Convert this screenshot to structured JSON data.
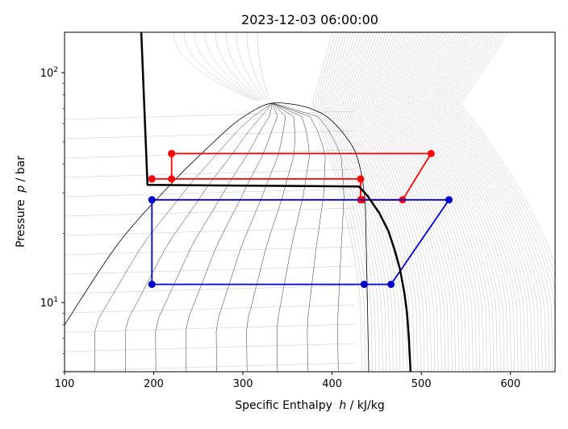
{
  "chart_data": {
    "type": "line",
    "title": "2023-12-03 06:00:00",
    "xlabel": "Specific Enthalpy",
    "xlabel_symbol": "h",
    "xlabel_unit": " / kJ/kg",
    "ylabel": "Pressure",
    "ylabel_symbol": "p",
    "ylabel_unit": " / bar",
    "xlim": [
      100,
      650
    ],
    "ylim": [
      5,
      150
    ],
    "yscale": "log",
    "xticks": [
      100,
      200,
      300,
      400,
      500,
      600
    ],
    "yticks": [
      {
        "value": 10,
        "label": "10",
        "sup": "1"
      },
      {
        "value": 100,
        "label": "10",
        "sup": "2"
      }
    ],
    "grid": false,
    "legend": "none",
    "series": [
      {
        "color": "#ff0000",
        "marker": "circle",
        "x": [
          220,
          511,
          479,
          434,
          432,
          432,
          198,
          198,
          220,
          220
        ],
        "y": [
          44.5,
          44.5,
          28,
          28,
          28,
          34.5,
          34.5,
          34.5,
          34.5,
          44.5
        ]
      },
      {
        "color": "#0000cc",
        "marker": "circle",
        "x": [
          198,
          531,
          466,
          436,
          198,
          198
        ],
        "y": [
          28,
          28,
          12,
          12,
          12,
          28
        ]
      },
      {
        "color": "#000000",
        "marker": "none",
        "x": [
          186,
          193,
          430,
          440,
          453,
          463,
          470,
          476,
          481,
          484,
          486,
          488
        ],
        "y": [
          150,
          32.5,
          32,
          29,
          24.5,
          20.5,
          17,
          14,
          11,
          9,
          7,
          5
        ]
      }
    ],
    "saturation_dome": {
      "color": "#000000",
      "critical_point": {
        "h": 333,
        "p": 73.8
      },
      "liquid": {
        "h": [
          100,
          160,
          220,
          260,
          290,
          315,
          333
        ],
        "p": [
          8,
          18,
          33,
          47,
          60,
          69.5,
          73.8
        ]
      },
      "vapor": {
        "h": [
          333,
          355,
          375,
          395,
          415,
          428,
          436,
          438,
          441
        ],
        "p": [
          73.8,
          73,
          70,
          64,
          53,
          43,
          30,
          20,
          5
        ]
      }
    },
    "isotherm_color": "#999999",
    "isentrope_color": "#999999"
  }
}
